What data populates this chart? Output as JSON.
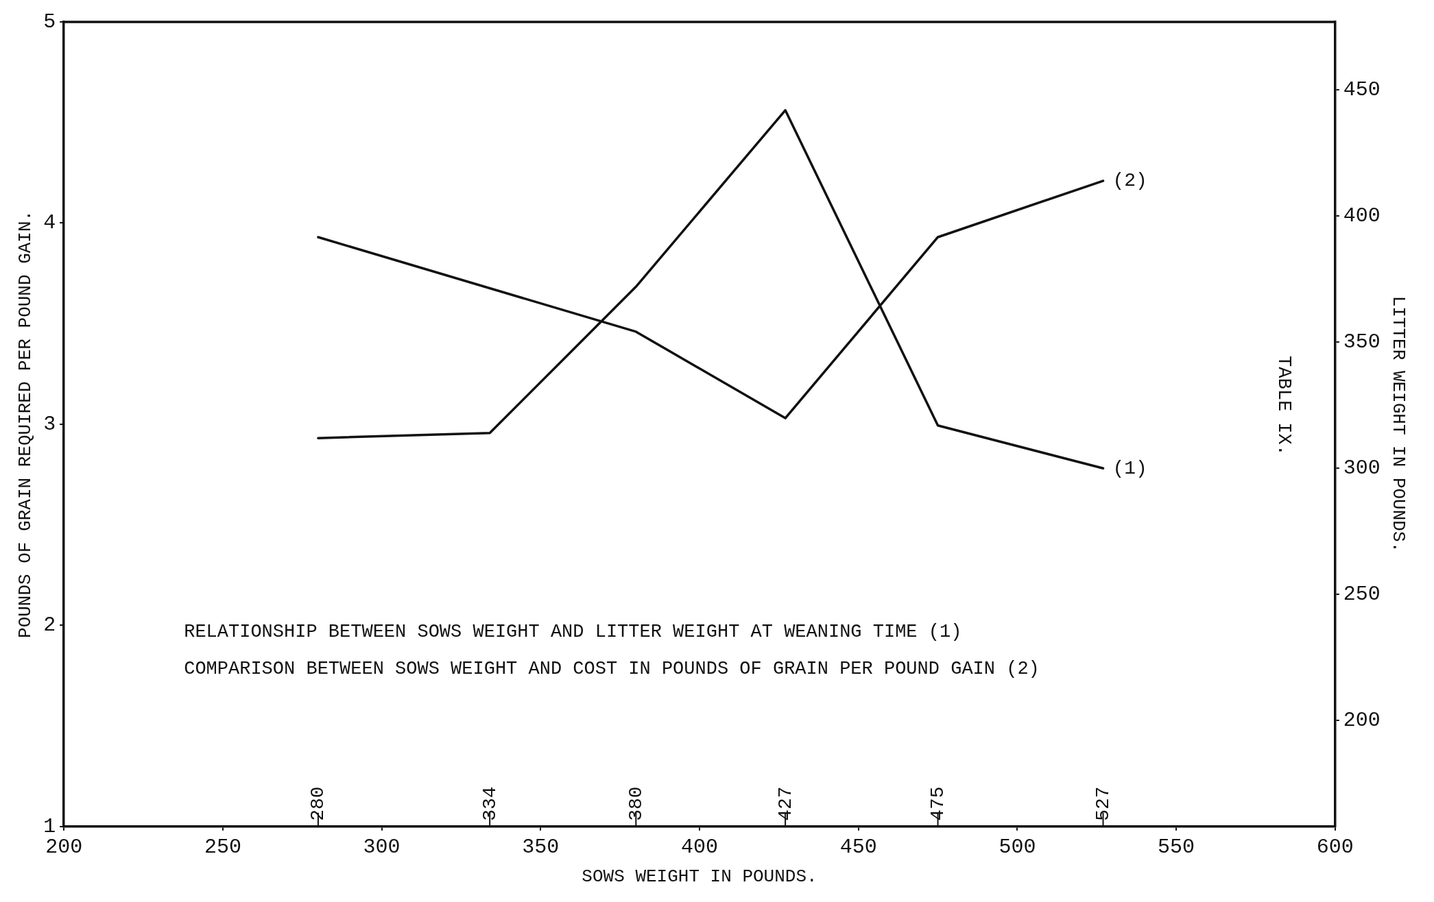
{
  "chart_data": {
    "type": "line",
    "xlabel": "SOWS WEIGHT IN POUNDS.",
    "ylabel": "POUNDS OF GRAIN REQUIRED PER POUND GAIN.",
    "y2label": "LITTER WEIGHT IN POUNDS.",
    "xlim": [
      200,
      600
    ],
    "xticks": [
      200,
      250,
      300,
      350,
      400,
      450,
      500,
      550,
      600
    ],
    "x2lim": [
      200,
      600
    ],
    "x2ticks": [
      280,
      334,
      380,
      427,
      475,
      527
    ],
    "ylim": [
      1,
      5
    ],
    "yticks": [
      1,
      2,
      3,
      4,
      5
    ],
    "y2lim": [
      158,
      477
    ],
    "y2ticks": [
      200,
      250,
      300,
      350,
      400,
      450
    ],
    "series": [
      {
        "name": "(1)",
        "color": "#111111",
        "axis": "y2",
        "x": [
          280,
          334,
          380,
          427,
          475,
          527
        ],
        "values": [
          312,
          314,
          372,
          442,
          317,
          300
        ]
      },
      {
        "name": "(2)",
        "color": "#111111",
        "axis": "y",
        "x": [
          280,
          380,
          427,
          475,
          527
        ],
        "values": [
          3.93,
          3.46,
          3.03,
          3.93,
          4.21
        ]
      }
    ],
    "annotations": [
      "RELATIONSHIP BETWEEN SOWS WEIGHT AND LITTER WEIGHT AT WEANING TIME (1)",
      "COMPARISON BETWEEN SOWS WEIGHT AND COST IN POUNDS OF GRAIN PER POUND GAIN (2)",
      "TABLE IX."
    ],
    "grid": false,
    "legend": false,
    "marker": "none",
    "line_style": "solid"
  }
}
